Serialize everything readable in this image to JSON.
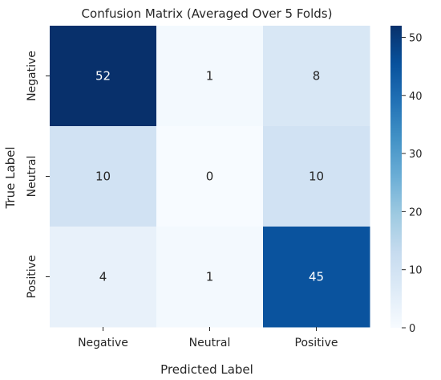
{
  "chart_data": {
    "type": "heatmap",
    "title": "Confusion Matrix (Averaged Over 5 Folds)",
    "xlabel": "Predicted Label",
    "ylabel": "True Label",
    "x_categories": [
      "Negative",
      "Neutral",
      "Positive"
    ],
    "y_categories": [
      "Negative",
      "Neutral",
      "Positive"
    ],
    "values": [
      [
        52,
        1,
        8
      ],
      [
        10,
        0,
        10
      ],
      [
        4,
        1,
        45
      ]
    ],
    "colormap": "Blues",
    "colorbar": {
      "range": [
        0,
        52
      ],
      "ticks": [
        0,
        10,
        20,
        30,
        40,
        50
      ],
      "tick_labels": [
        "0",
        "10",
        "20",
        "30",
        "40",
        "50"
      ]
    }
  },
  "colors": {
    "low": "#f7fbff",
    "high": "#08306b",
    "text_dark": "#262626",
    "text_light": "#ffffff"
  }
}
